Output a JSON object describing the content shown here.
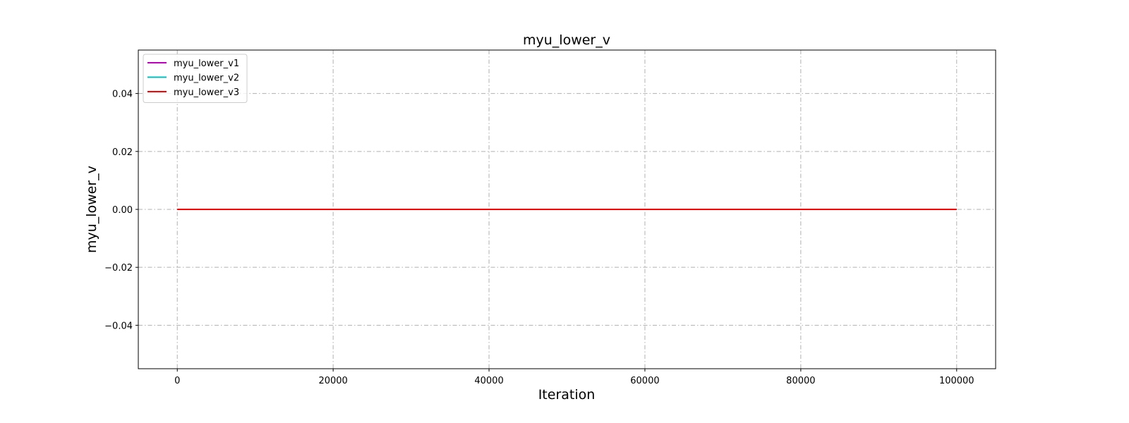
{
  "chart_data": {
    "type": "line",
    "title": "myu_lower_v",
    "xlabel": "Iteration",
    "ylabel": "myu_lower_v",
    "xlim": [
      -5000,
      105000
    ],
    "ylim": [
      -0.055,
      0.055
    ],
    "x_ticks": [
      0,
      20000,
      40000,
      60000,
      80000,
      100000
    ],
    "x_tick_labels": [
      "0",
      "20000",
      "40000",
      "60000",
      "80000",
      "100000"
    ],
    "y_ticks": [
      -0.04,
      -0.02,
      0.0,
      0.02,
      0.04
    ],
    "y_tick_labels": [
      "−0.04",
      "−0.02",
      "0.00",
      "0.02",
      "0.04"
    ],
    "grid": true,
    "legend_position": "top-left",
    "series": [
      {
        "name": "myu_lower_v1",
        "color": "#bf00bf",
        "x": [
          0,
          100000
        ],
        "y": [
          0,
          0
        ]
      },
      {
        "name": "myu_lower_v2",
        "color": "#00bfbf",
        "x": [
          0,
          100000
        ],
        "y": [
          0,
          0
        ]
      },
      {
        "name": "myu_lower_v3",
        "color": "#ff0000",
        "x": [
          0,
          100000
        ],
        "y": [
          0,
          0
        ]
      }
    ]
  }
}
